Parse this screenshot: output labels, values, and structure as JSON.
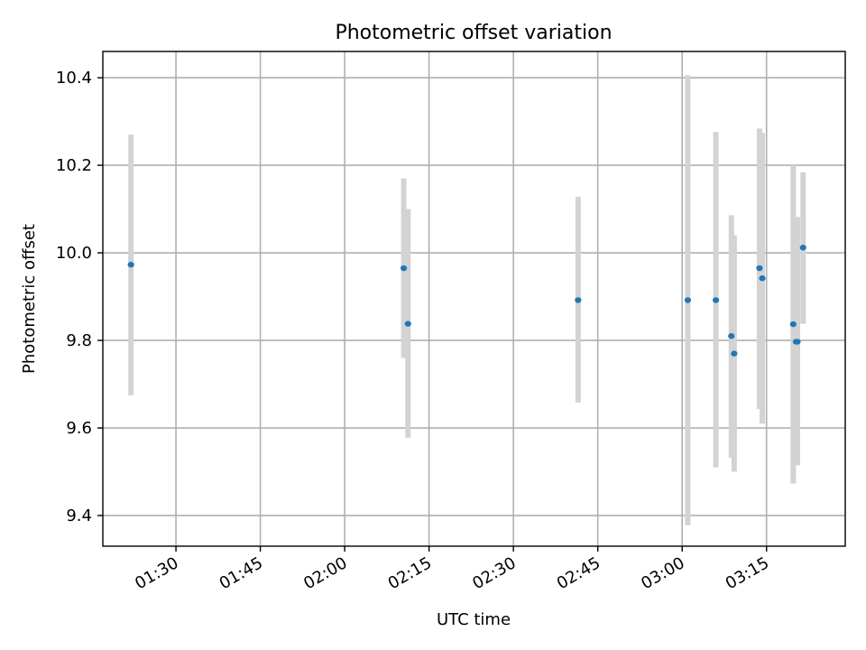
{
  "chart_data": {
    "type": "scatter",
    "title": "Photometric offset variation",
    "xlabel": "UTC time",
    "ylabel": "Photometric offset",
    "x_ticks": [
      "01:30",
      "01:45",
      "02:00",
      "02:15",
      "02:30",
      "02:45",
      "03:00",
      "03:15"
    ],
    "y_ticks": [
      "9.4",
      "9.6",
      "9.8",
      "10.0",
      "10.2",
      "10.4"
    ],
    "xlim": [
      "01:17",
      "03:29"
    ],
    "ylim": [
      9.33,
      10.46
    ],
    "grid": true,
    "colors": {
      "marker": "#1f77b4",
      "errorbar": "#d3d3d3"
    },
    "points": [
      {
        "x": "01:22:00",
        "y": 9.973,
        "ylow": 9.675,
        "yhigh": 10.27
      },
      {
        "x": "02:10:30",
        "y": 9.965,
        "ylow": 9.76,
        "yhigh": 10.17
      },
      {
        "x": "02:11:15",
        "y": 9.838,
        "ylow": 9.578,
        "yhigh": 10.1
      },
      {
        "x": "02:41:30",
        "y": 9.892,
        "ylow": 9.658,
        "yhigh": 10.128
      },
      {
        "x": "03:01:00",
        "y": 9.892,
        "ylow": 9.378,
        "yhigh": 10.406
      },
      {
        "x": "03:06:00",
        "y": 9.892,
        "ylow": 9.51,
        "yhigh": 10.276
      },
      {
        "x": "03:08:45",
        "y": 9.81,
        "ylow": 9.532,
        "yhigh": 10.086
      },
      {
        "x": "03:09:15",
        "y": 9.77,
        "ylow": 9.5,
        "yhigh": 10.04
      },
      {
        "x": "03:13:45",
        "y": 9.965,
        "ylow": 9.643,
        "yhigh": 10.284
      },
      {
        "x": "03:14:15",
        "y": 9.942,
        "ylow": 9.61,
        "yhigh": 10.274
      },
      {
        "x": "03:19:45",
        "y": 9.837,
        "ylow": 9.473,
        "yhigh": 10.2
      },
      {
        "x": "03:20:15",
        "y": 9.797,
        "ylow": 9.515,
        "yhigh": 10.082
      },
      {
        "x": "03:20:30",
        "y": 9.797,
        "ylow": 9.515,
        "yhigh": 10.082
      },
      {
        "x": "03:21:30",
        "y": 10.012,
        "ylow": 9.838,
        "yhigh": 10.184
      }
    ]
  }
}
